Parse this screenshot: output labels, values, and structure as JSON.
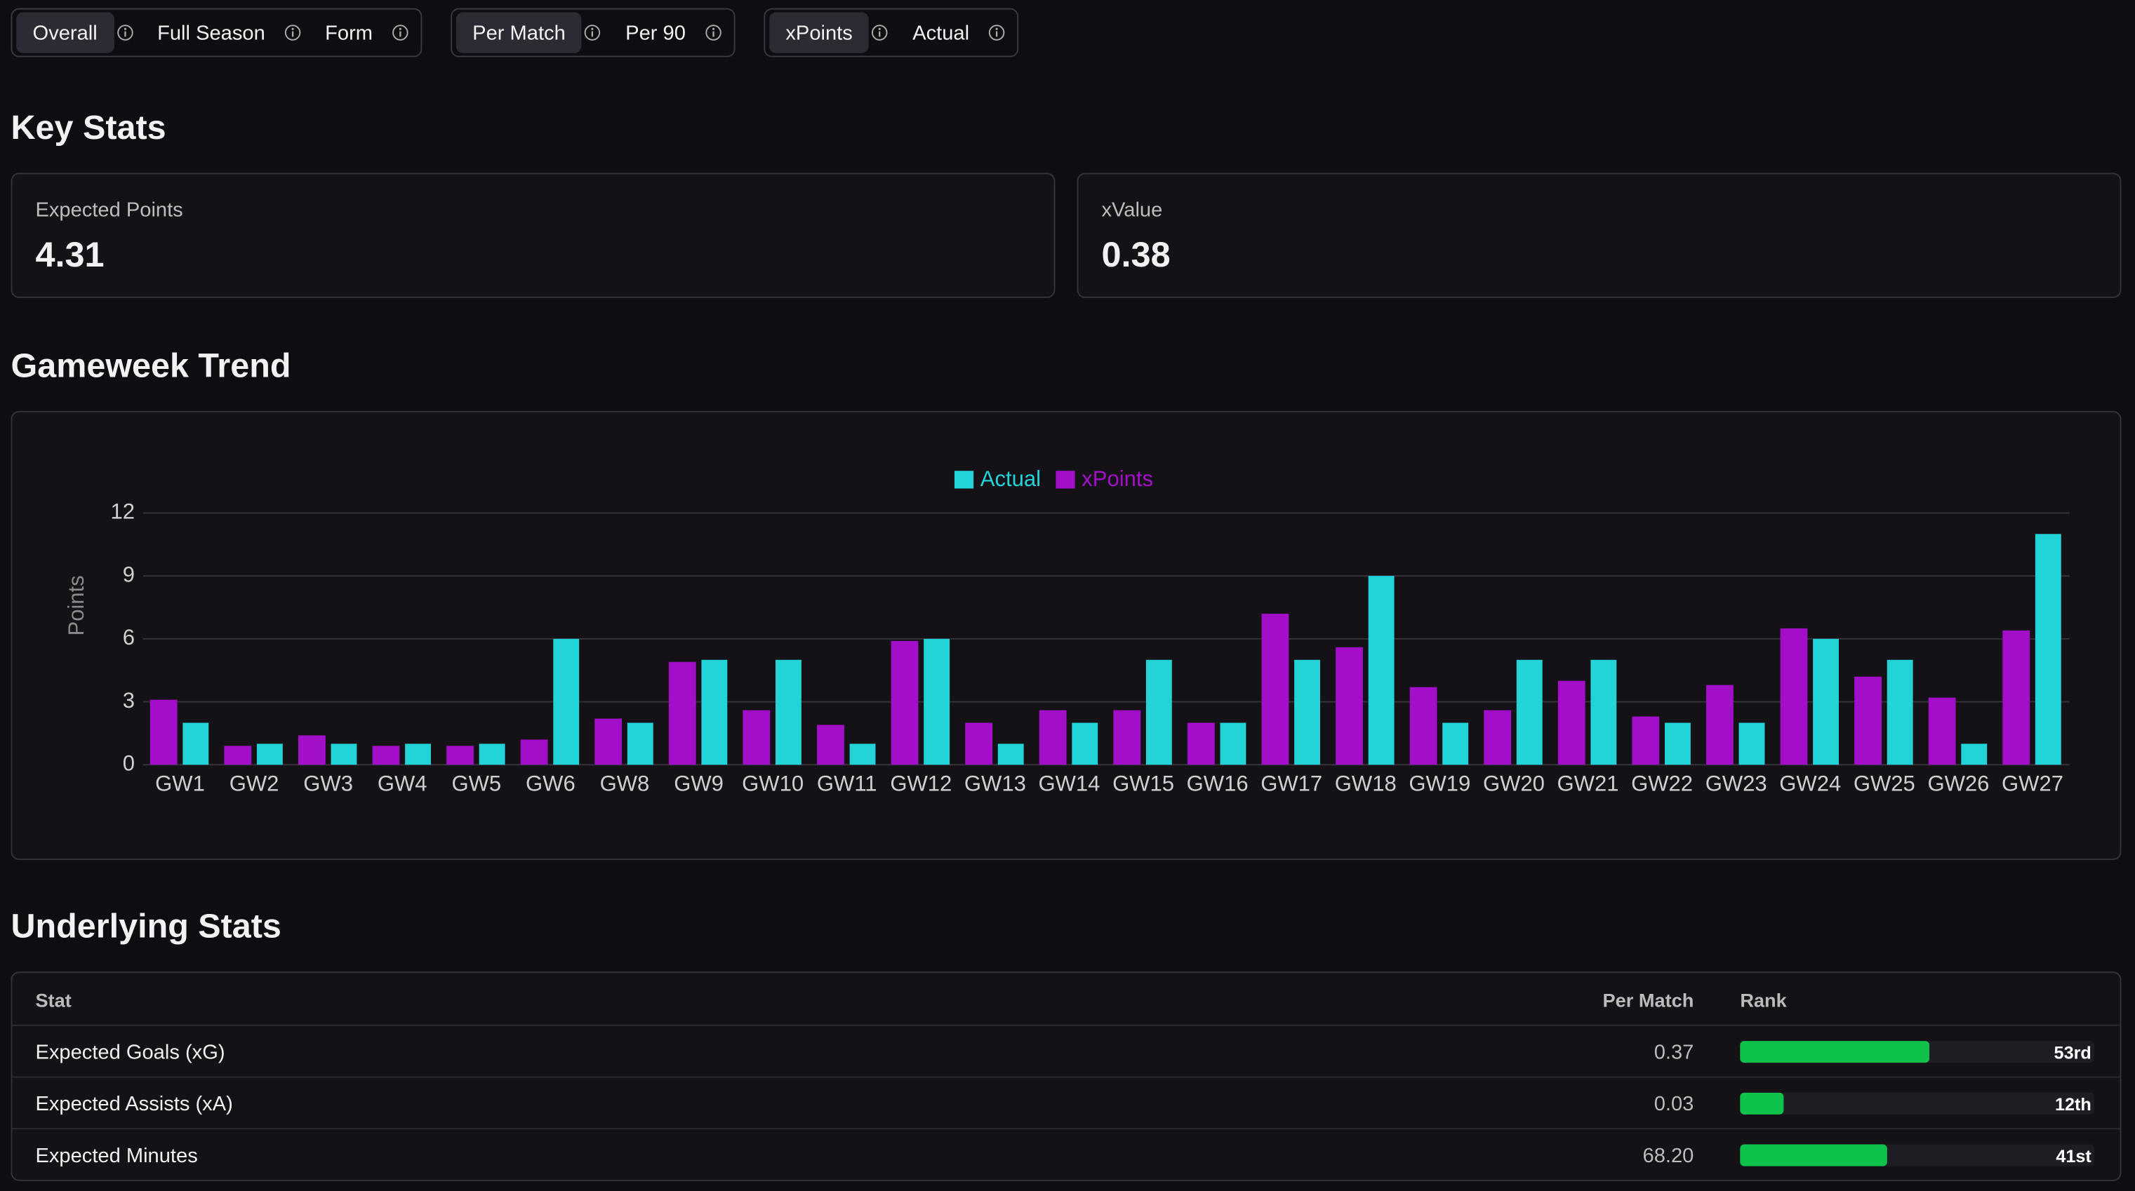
{
  "toggles": [
    {
      "options": [
        "Overall",
        "Full Season",
        "Form"
      ],
      "active": 0
    },
    {
      "options": [
        "Per Match",
        "Per 90"
      ],
      "active": 0
    },
    {
      "options": [
        "xPoints",
        "Actual"
      ],
      "active": 0
    }
  ],
  "key_stats": {
    "title": "Key Stats",
    "cards": [
      {
        "label": "Expected Points",
        "value": "4.31"
      },
      {
        "label": "xValue",
        "value": "0.38"
      }
    ]
  },
  "trend": {
    "title": "Gameweek Trend"
  },
  "chart_data": {
    "type": "bar",
    "y_label": "Points",
    "categories": [
      "GW1",
      "GW2",
      "GW3",
      "GW4",
      "GW5",
      "GW6",
      "GW8",
      "GW9",
      "GW10",
      "GW11",
      "GW12",
      "GW13",
      "GW14",
      "GW15",
      "GW16",
      "GW17",
      "GW18",
      "GW19",
      "GW20",
      "GW21",
      "GW22",
      "GW23",
      "GW24",
      "GW25",
      "GW26",
      "GW27"
    ],
    "series": [
      {
        "name": "Actual",
        "color": "#22d3d8",
        "values": [
          2,
          1,
          1,
          1,
          1,
          6,
          2,
          5,
          5,
          1,
          6,
          1,
          2,
          5,
          2,
          5,
          9,
          2,
          5,
          5,
          2,
          2,
          6,
          5,
          1,
          11
        ]
      },
      {
        "name": "xPoints",
        "color": "#a30fc9",
        "values": [
          3.1,
          0.9,
          1.4,
          0.9,
          0.9,
          1.2,
          2.2,
          4.9,
          2.6,
          1.9,
          5.9,
          2.0,
          2.6,
          2.6,
          2.0,
          7.2,
          5.6,
          3.7,
          2.6,
          4.0,
          2.3,
          3.8,
          6.5,
          4.2,
          3.2,
          6.4
        ]
      }
    ],
    "ylim": [
      0,
      12
    ],
    "yticks": [
      0,
      3,
      6,
      9,
      12
    ],
    "grid": true
  },
  "underlying": {
    "title": "Underlying Stats",
    "columns": [
      "Stat",
      "Per Match",
      "Rank"
    ],
    "rows": [
      {
        "stat": "Expected Goals (xG)",
        "per_match": "0.37",
        "rank": {
          "value": 53,
          "label": "53rd"
        }
      },
      {
        "stat": "Expected Assists (xA)",
        "per_match": "0.03",
        "rank": {
          "value": 12,
          "label": "12th"
        }
      },
      {
        "stat": "Expected Minutes",
        "per_match": "68.20",
        "rank": {
          "value": 41,
          "label": "41st"
        }
      }
    ]
  }
}
